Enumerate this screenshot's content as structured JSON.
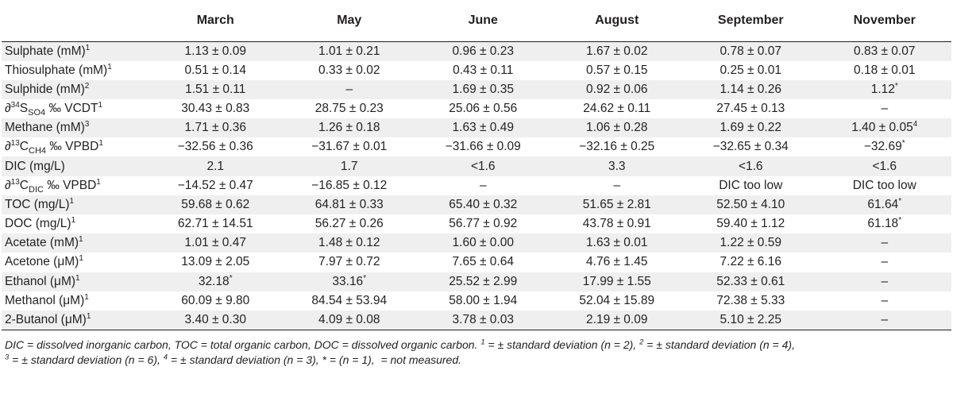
{
  "columns": [
    "",
    "March",
    "May",
    "June",
    "August",
    "September",
    "November"
  ],
  "rows": [
    {
      "name": "Sulphate (mM)",
      "sup": "1",
      "cells": [
        {
          "v": "1.13 ± 0.09"
        },
        {
          "v": "1.01 ± 0.21"
        },
        {
          "v": "0.96 ± 0.23"
        },
        {
          "v": "1.67 ± 0.02"
        },
        {
          "v": "0.78 ± 0.07"
        },
        {
          "v": "0.83 ± 0.07"
        }
      ]
    },
    {
      "name": "Thiosulphate (mM)",
      "sup": "1",
      "cells": [
        {
          "v": "0.51 ± 0.14"
        },
        {
          "v": "0.33 ± 0.02"
        },
        {
          "v": "0.43 ± 0.11"
        },
        {
          "v": "0.57 ± 0.15"
        },
        {
          "v": "0.25 ± 0.01"
        },
        {
          "v": "0.18 ± 0.01"
        }
      ]
    },
    {
      "name": "Sulphide (mM)",
      "sup": "2",
      "cells": [
        {
          "v": "1.51 ± 0.11"
        },
        {
          "v": "–"
        },
        {
          "v": "1.69 ± 0.35"
        },
        {
          "v": "0.92 ± 0.06"
        },
        {
          "v": "1.14 ± 0.26"
        },
        {
          "v": "1.12",
          "sup": "*"
        }
      ]
    },
    {
      "name": "∂",
      "sup": "34",
      "name2": "S",
      "sub": "SO4",
      "tail": " ‰ VCDT",
      "sup2": "1",
      "cells": [
        {
          "v": "30.43 ± 0.83"
        },
        {
          "v": "28.75 ± 0.23"
        },
        {
          "v": "25.06 ± 0.56"
        },
        {
          "v": "24.62 ± 0.11"
        },
        {
          "v": "27.45 ± 0.13"
        },
        {
          "v": "–"
        }
      ]
    },
    {
      "name": "Methane (mM)",
      "sup": "3",
      "cells": [
        {
          "v": "1.71 ± 0.36"
        },
        {
          "v": "1.26 ± 0.18"
        },
        {
          "v": "1.63 ± 0.49"
        },
        {
          "v": "1.06 ± 0.28"
        },
        {
          "v": "1.69 ± 0.22"
        },
        {
          "v": "1.40 ± 0.05",
          "sup": "4"
        }
      ]
    },
    {
      "name": "∂",
      "sup": "13",
      "name2": "C",
      "sub": "CH4",
      "tail": " ‰ VPBD",
      "sup2": "1",
      "cells": [
        {
          "v": "−32.56 ± 0.36"
        },
        {
          "v": "−31.67 ± 0.01"
        },
        {
          "v": "−31.66 ± 0.09"
        },
        {
          "v": "−32.16 ± 0.25"
        },
        {
          "v": "−32.65 ± 0.34"
        },
        {
          "v": "−32.69",
          "sup": "*"
        }
      ]
    },
    {
      "name": "DIC (mg/L)",
      "cells": [
        {
          "v": "2.1"
        },
        {
          "v": "1.7"
        },
        {
          "v": "<1.6"
        },
        {
          "v": "3.3"
        },
        {
          "v": "<1.6"
        },
        {
          "v": "<1.6"
        }
      ]
    },
    {
      "name": "∂",
      "sup": "13",
      "name2": "C",
      "sub": "DIC",
      "tail": " ‰ VPBD",
      "sup2": "1",
      "cells": [
        {
          "v": "−14.52 ± 0.47"
        },
        {
          "v": "−16.85 ± 0.12"
        },
        {
          "v": "–"
        },
        {
          "v": "–"
        },
        {
          "v": "DIC too low"
        },
        {
          "v": "DIC too low"
        }
      ]
    },
    {
      "name": "TOC (mg/L)",
      "sup": "1",
      "cells": [
        {
          "v": "59.68 ± 0.62"
        },
        {
          "v": "64.81 ± 0.33"
        },
        {
          "v": "65.40 ± 0.32"
        },
        {
          "v": "51.65 ± 2.81"
        },
        {
          "v": "52.50 ± 4.10"
        },
        {
          "v": "61.64",
          "sup": "*"
        }
      ]
    },
    {
      "name": "DOC (mg/L)",
      "sup": "1",
      "cells": [
        {
          "v": "62.71 ± 14.51"
        },
        {
          "v": "56.27 ± 0.26"
        },
        {
          "v": "56.77 ± 0.92"
        },
        {
          "v": "43.78 ± 0.91"
        },
        {
          "v": "59.40 ± 1.12"
        },
        {
          "v": "61.18",
          "sup": "*"
        }
      ]
    },
    {
      "name": "Acetate (mM)",
      "sup": "1",
      "cells": [
        {
          "v": "1.01 ± 0.47"
        },
        {
          "v": "1.48 ± 0.12"
        },
        {
          "v": "1.60 ± 0.00"
        },
        {
          "v": "1.63 ± 0.01"
        },
        {
          "v": "1.22 ± 0.59"
        },
        {
          "v": "–"
        }
      ]
    },
    {
      "name": "Acetone (μM)",
      "sup": "1",
      "cells": [
        {
          "v": "13.09 ± 2.05"
        },
        {
          "v": "7.97 ± 0.72"
        },
        {
          "v": "7.65 ± 0.64"
        },
        {
          "v": "4.76 ± 1.45"
        },
        {
          "v": "7.22 ± 6.16"
        },
        {
          "v": "–"
        }
      ]
    },
    {
      "name": "Ethanol (μM)",
      "sup": "1",
      "cells": [
        {
          "v": "32.18",
          "sup": "*"
        },
        {
          "v": "33.16",
          "sup": "*"
        },
        {
          "v": "25.52 ± 2.99"
        },
        {
          "v": "17.99 ± 1.55"
        },
        {
          "v": "52.33 ± 0.61"
        },
        {
          "v": "–"
        }
      ]
    },
    {
      "name": "Methanol (μM)",
      "sup": "1",
      "cells": [
        {
          "v": "60.09 ± 9.80"
        },
        {
          "v": "84.54 ± 53.94"
        },
        {
          "v": "58.00 ± 1.94"
        },
        {
          "v": "52.04 ± 15.89"
        },
        {
          "v": "72.38 ± 5.33"
        },
        {
          "v": "–"
        }
      ]
    },
    {
      "name": "2-Butanol (μM)",
      "sup": "1",
      "cells": [
        {
          "v": "3.40 ± 0.30"
        },
        {
          "v": "4.09 ± 0.08"
        },
        {
          "v": "3.78 ± 0.03"
        },
        {
          "v": "2.19 ± 0.09"
        },
        {
          "v": "5.10 ± 2.25"
        },
        {
          "v": "–"
        }
      ]
    }
  ],
  "footnote": [
    {
      "t": "DIC = dissolved inorganic carbon, TOC = total organic carbon, DOC = dissolved organic carbon. "
    },
    {
      "s": "1"
    },
    {
      "t": " = ± standard deviation (n = 2), "
    },
    {
      "s": "2"
    },
    {
      "t": " = ± standard deviation (n = 4), "
    },
    {
      "br": true
    },
    {
      "s": "3"
    },
    {
      "t": " = ± standard deviation (n = 6), "
    },
    {
      "s": "4"
    },
    {
      "t": " = ± standard deviation (n = 3), * = (n = 1),  = not measured."
    }
  ]
}
